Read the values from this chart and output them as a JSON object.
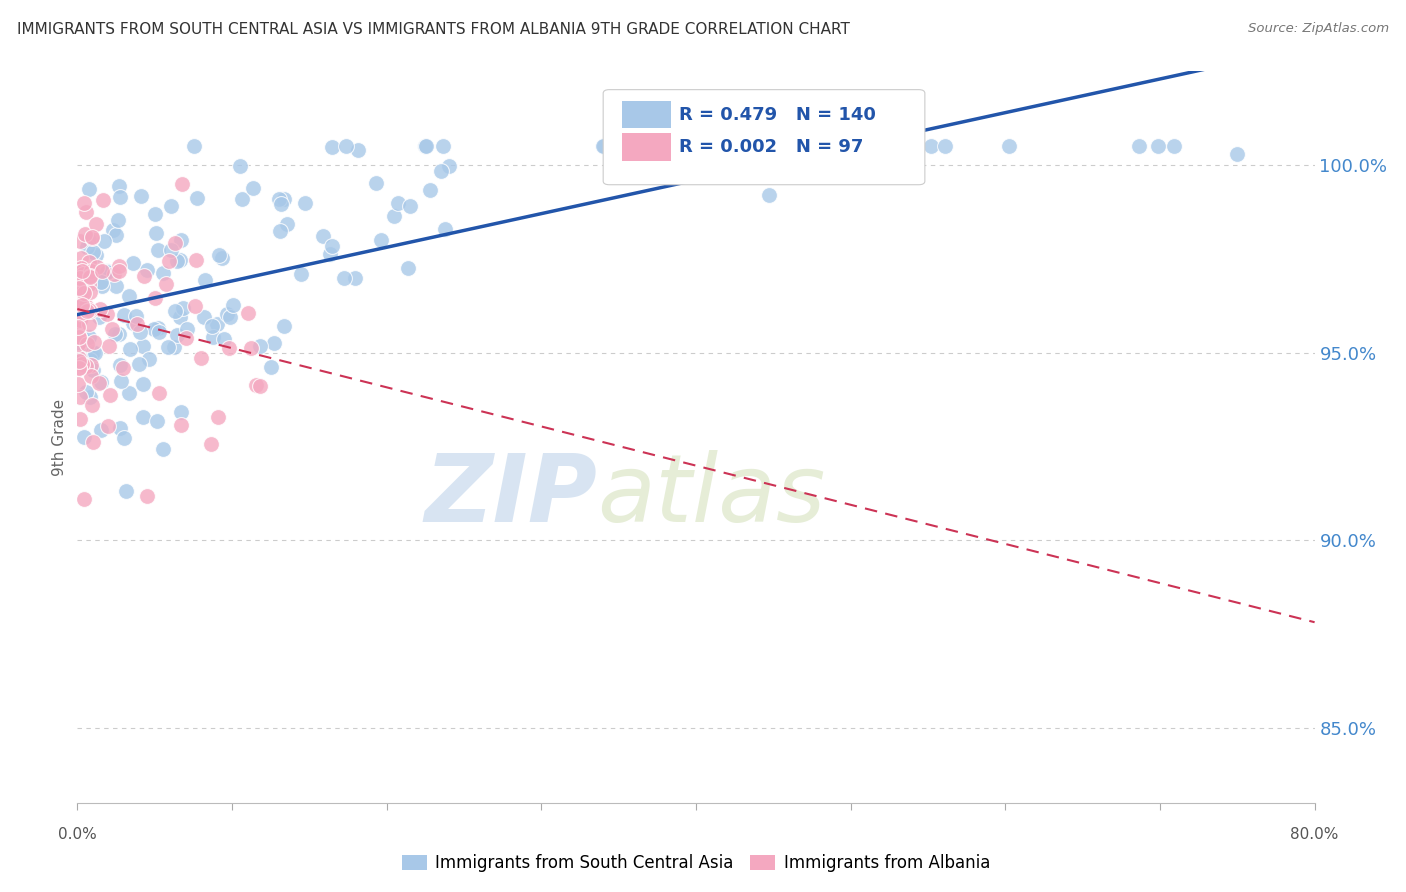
{
  "title": "IMMIGRANTS FROM SOUTH CENTRAL ASIA VS IMMIGRANTS FROM ALBANIA 9TH GRADE CORRELATION CHART",
  "source": "Source: ZipAtlas.com",
  "ylabel": "9th Grade",
  "ytick_labels": [
    "85.0%",
    "90.0%",
    "95.0%",
    "100.0%"
  ],
  "ytick_values": [
    0.85,
    0.9,
    0.95,
    1.0
  ],
  "xlim": [
    0.0,
    0.8
  ],
  "ylim": [
    0.83,
    1.025
  ],
  "watermark_zip": "ZIP",
  "watermark_atlas": "atlas",
  "legend_blue_r": "0.479",
  "legend_blue_n": "140",
  "legend_pink_r": "0.002",
  "legend_pink_n": "97",
  "blue_color": "#a8c8e8",
  "pink_color": "#f4a8c0",
  "trendline_blue_color": "#2255aa",
  "trendline_pink_color": "#cc3355",
  "legend_text_color": "#2255aa",
  "title_color": "#333333",
  "source_color": "#777777",
  "ylabel_color": "#666666",
  "ytick_color": "#4488cc",
  "grid_color": "#cccccc",
  "grid_style": "--"
}
